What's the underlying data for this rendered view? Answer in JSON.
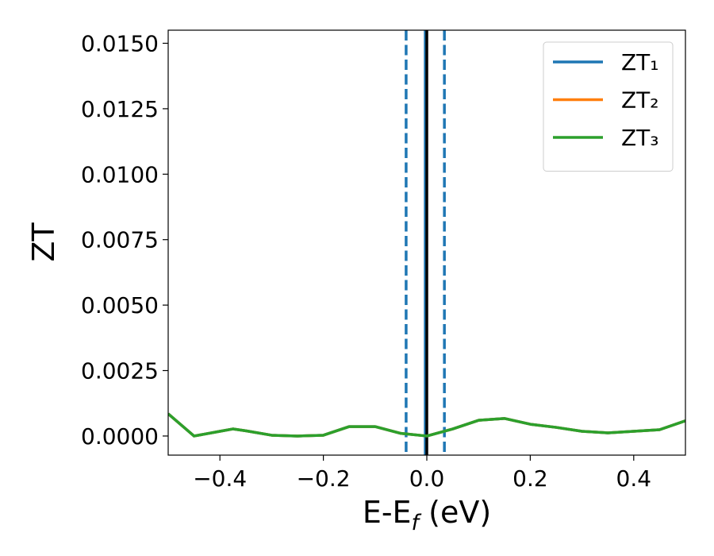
{
  "chart_data": {
    "type": "line",
    "x_label": "E-E",
    "x_label_sub": "f",
    "x_label_suffix": " (eV)",
    "y_label": "ZT",
    "x": [
      -0.5,
      -0.45,
      -0.4,
      -0.375,
      -0.35,
      -0.3,
      -0.25,
      -0.2,
      -0.15,
      -0.1,
      -0.05,
      0.0,
      0.05,
      0.1,
      0.15,
      0.2,
      0.25,
      0.3,
      0.35,
      0.4,
      0.45,
      0.5
    ],
    "series": [
      {
        "name": "ZT₁",
        "color": "#1f77b4",
        "values": [
          0.00085,
          0.0,
          0.00018,
          0.00027,
          0.0002,
          3e-05,
          0.0,
          3e-05,
          0.00036,
          0.00036,
          0.0001,
          0.0,
          0.00027,
          0.0006,
          0.00067,
          0.00045,
          0.00033,
          0.00018,
          0.00012,
          0.00018,
          0.00024,
          0.00058
        ]
      },
      {
        "name": "ZT₂",
        "color": "#ff7f0e",
        "values": [
          0.00085,
          0.0,
          0.00018,
          0.00027,
          0.0002,
          3e-05,
          0.0,
          3e-05,
          0.00036,
          0.00036,
          0.0001,
          0.0,
          0.00027,
          0.0006,
          0.00067,
          0.00045,
          0.00033,
          0.00018,
          0.00012,
          0.00018,
          0.00024,
          0.00058
        ]
      },
      {
        "name": "ZT₃",
        "color": "#2ca02c",
        "values": [
          0.00085,
          0.0,
          0.00018,
          0.00027,
          0.0002,
          3e-05,
          0.0,
          3e-05,
          0.00036,
          0.00036,
          0.0001,
          0.0,
          0.00027,
          0.0006,
          0.00067,
          0.00045,
          0.00033,
          0.00018,
          0.00012,
          0.00018,
          0.00024,
          0.00058
        ]
      }
    ],
    "vlines": [
      {
        "x": -0.04,
        "color": "#1f77b4",
        "style": "dashed"
      },
      {
        "x": 0.034,
        "color": "#1f77b4",
        "style": "dashed"
      },
      {
        "x": -0.003,
        "color": "#1f77b4",
        "style": "solid"
      },
      {
        "x": 0.0,
        "color": "#000000",
        "style": "solid"
      }
    ],
    "xlim": [
      -0.5,
      0.5
    ],
    "xticks": [
      {
        "value": -0.4,
        "label": "−0.4"
      },
      {
        "value": -0.2,
        "label": "−0.2"
      },
      {
        "value": 0.0,
        "label": "0.0"
      },
      0.2,
      0.4
    ],
    "ylim": [
      -0.00073,
      0.0155
    ],
    "yticks": [
      {
        "value": 0,
        "label": "0.0000"
      },
      {
        "value": 0.0025,
        "label": "0.0025"
      },
      {
        "value": 0.005,
        "label": "0.0050"
      },
      {
        "value": 0.0075,
        "label": "0.0075"
      },
      {
        "value": 0.01,
        "label": "0.0100"
      },
      {
        "value": 0.0125,
        "label": "0.0125"
      },
      {
        "value": 0.015,
        "label": "0.0150"
      }
    ],
    "legend": "upper right"
  }
}
